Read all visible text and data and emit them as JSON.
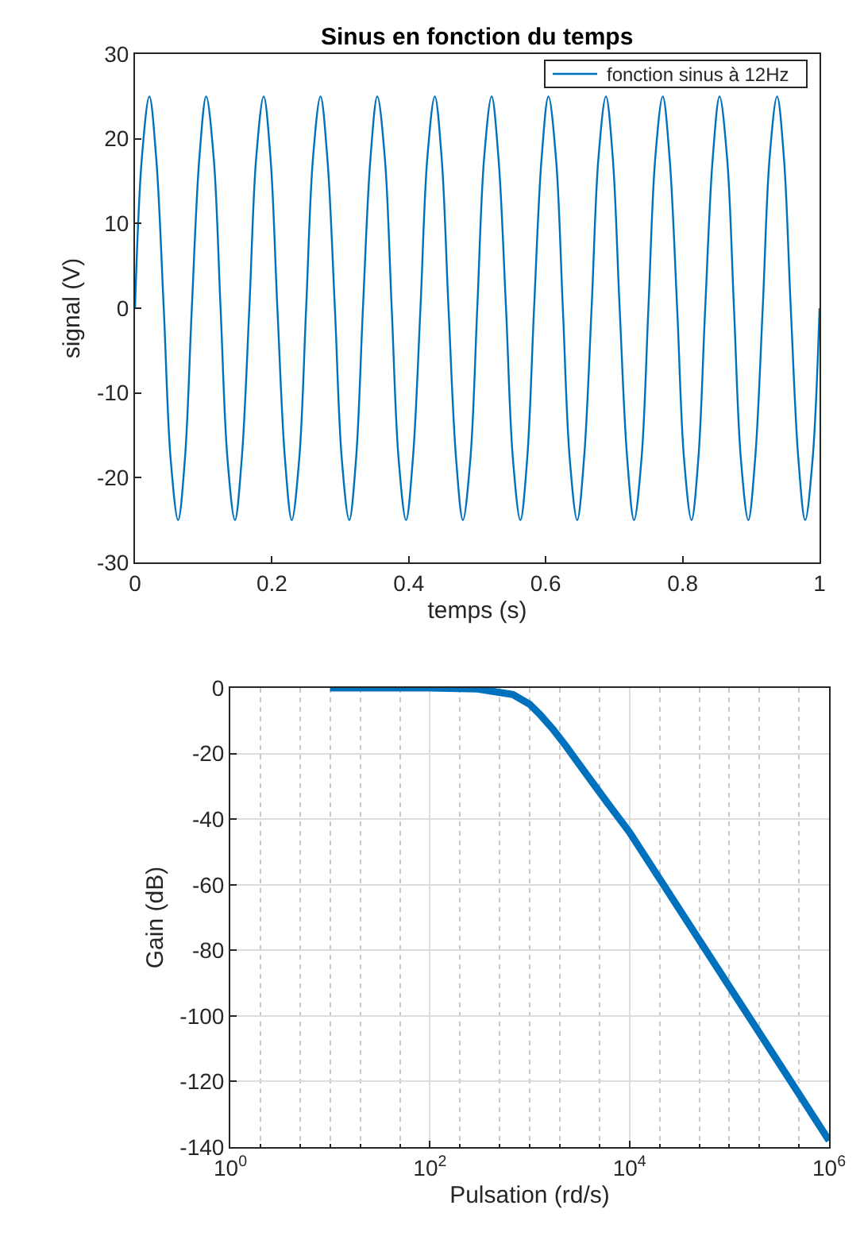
{
  "chart_data": [
    {
      "type": "line",
      "title": "Sinus en fonction du temps",
      "xlabel": "temps (s)",
      "ylabel": "signal (V)",
      "x": [
        0,
        0.01,
        0.021,
        0.031,
        0.042,
        0.052,
        0.063,
        0.073,
        0.083,
        0.094,
        0.104,
        0.115,
        0.125,
        0.135,
        0.146,
        0.156,
        0.167,
        0.177,
        0.188,
        0.198,
        0.208,
        0.219,
        0.229,
        0.24,
        0.25,
        0.26,
        0.271,
        0.281,
        0.292,
        0.302,
        0.313,
        0.323,
        0.333,
        0.344,
        0.354,
        0.365,
        0.375,
        0.385,
        0.396,
        0.406,
        0.417,
        0.427,
        0.438,
        0.448,
        0.458,
        0.469,
        0.479,
        0.49,
        0.5,
        0.51,
        0.521,
        0.531,
        0.542,
        0.552,
        0.563,
        0.573,
        0.583,
        0.594,
        0.604,
        0.615,
        0.625,
        0.635,
        0.646,
        0.656,
        0.667,
        0.677,
        0.688,
        0.698,
        0.708,
        0.719,
        0.729,
        0.74,
        0.75,
        0.76,
        0.771,
        0.781,
        0.792,
        0.802,
        0.813,
        0.823,
        0.833,
        0.844,
        0.854,
        0.865,
        0.875,
        0.885,
        0.896,
        0.906,
        0.917,
        0.927,
        0.938,
        0.948,
        0.958,
        0.969,
        0.979,
        0.99,
        1
      ],
      "series": [
        {
          "name": "fonction sinus à 12Hz",
          "color": "#0072bd",
          "values": [
            0,
            17.7,
            25,
            17.7,
            0,
            -17.7,
            -25,
            -17.7,
            0,
            17.7,
            25,
            17.7,
            0,
            -17.7,
            -25,
            -17.7,
            0,
            17.7,
            25,
            17.7,
            0,
            -17.7,
            -25,
            -17.7,
            0,
            17.7,
            25,
            17.7,
            0,
            -17.7,
            -25,
            -17.7,
            0,
            17.7,
            25,
            17.7,
            0,
            -17.7,
            -25,
            -17.7,
            0,
            17.7,
            25,
            17.7,
            0,
            -17.7,
            -25,
            -17.7,
            0,
            17.7,
            25,
            17.7,
            0,
            -17.7,
            -25,
            -17.7,
            0,
            17.7,
            25,
            17.7,
            0,
            -17.7,
            -25,
            -17.7,
            0,
            17.7,
            25,
            17.7,
            0,
            -17.7,
            -25,
            -17.7,
            0,
            17.7,
            25,
            17.7,
            0,
            -17.7,
            -25,
            -17.7,
            0,
            17.7,
            25,
            17.7,
            0,
            -17.7,
            -25,
            -17.7,
            0,
            17.7,
            25,
            17.7,
            0,
            -17.7,
            -25,
            -17.7,
            0
          ]
        }
      ],
      "xlim": [
        0,
        1
      ],
      "xticks": [
        0,
        0.2,
        0.4,
        0.6,
        0.8,
        1
      ],
      "ylim": [
        -30,
        30
      ],
      "yticks": [
        -30,
        -20,
        -10,
        0,
        10,
        20,
        30
      ],
      "legend": "top right",
      "grid": false
    },
    {
      "type": "line",
      "xlabel": "Pulsation (rd/s)",
      "ylabel": "Gain (dB)",
      "log": "x",
      "x": [
        10,
        100,
        300,
        680,
        1000,
        1260,
        1700,
        2350,
        3000,
        4300,
        6000,
        10000,
        100000,
        1000000
      ],
      "series": [
        {
          "color": "#0072bd",
          "values": [
            0,
            0,
            -0.3,
            -2,
            -5,
            -8,
            -12.5,
            -18,
            -22.5,
            -29,
            -35,
            -44,
            -91,
            -138
          ]
        }
      ],
      "xlim": [
        1,
        1000000
      ],
      "xticks": [
        {
          "value": 1,
          "label": "10$^{0}$"
        },
        {
          "value": 100,
          "label": "10$^{2}$"
        },
        {
          "value": 10000,
          "label": "10$^{4}$"
        },
        {
          "value": 1000000,
          "label": "10$^{6}$"
        }
      ],
      "ylim": [
        -140,
        0
      ],
      "yticks": [
        -140,
        -120,
        -100,
        -80,
        -60,
        -40,
        -20,
        0
      ],
      "grid": true
    }
  ]
}
